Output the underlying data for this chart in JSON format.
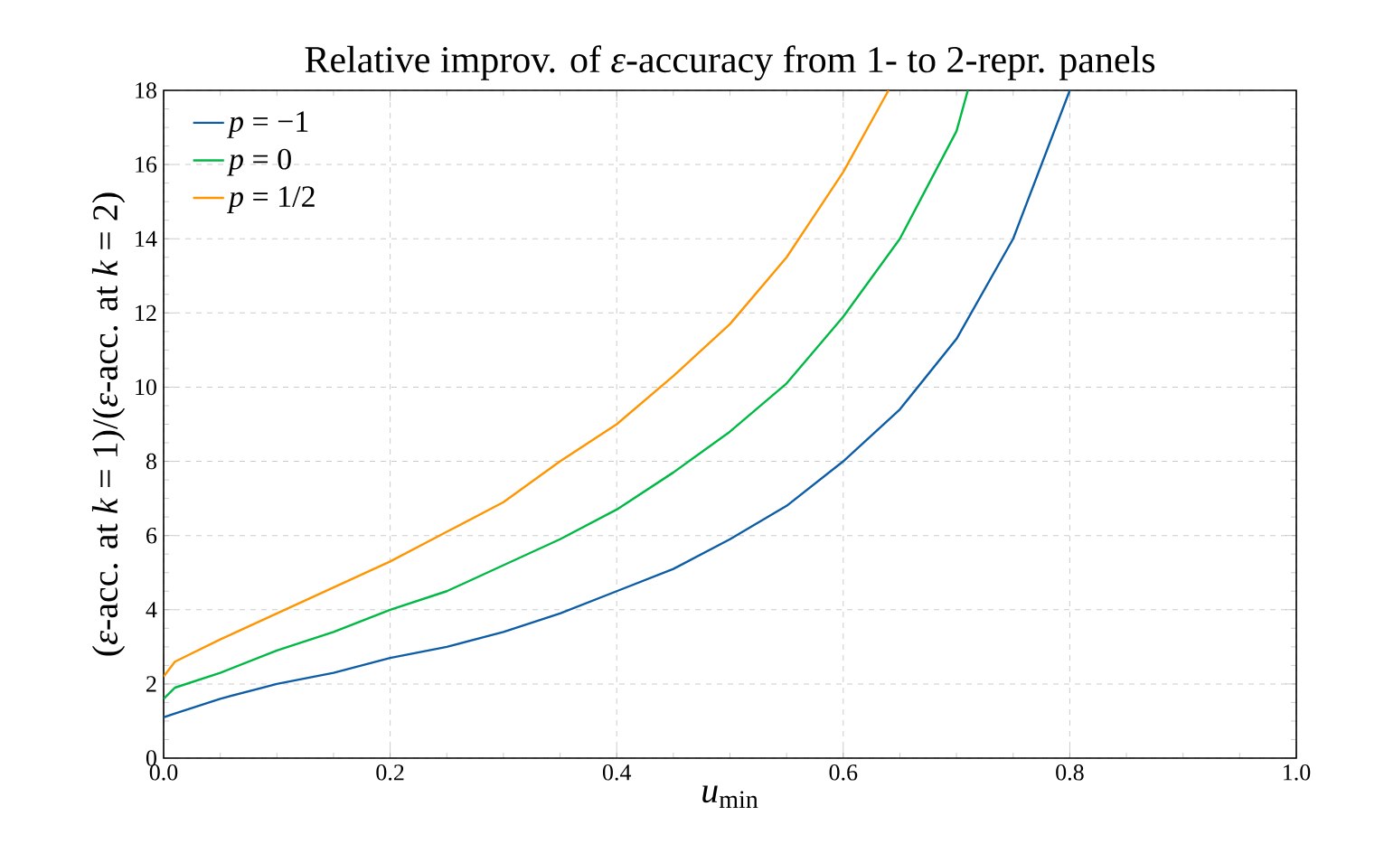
{
  "chart_data": {
    "type": "line",
    "title": "Relative improv. of *ε*-accuracy from 1- to 2-repr. panels",
    "xlabel": "*u*$_{min}$",
    "ylabel": "(*ε*-acc. at *k* = 1)/(*ε*-acc. at *k* = 2)",
    "series": [
      {
        "name": "*p* = −1",
        "color": "#0c5da5",
        "x": [
          0,
          0.01,
          0.05,
          0.1,
          0.15,
          0.2,
          0.25,
          0.3,
          0.35,
          0.4,
          0.45,
          0.5,
          0.55,
          0.6,
          0.65,
          0.7,
          0.75,
          0.8
        ],
        "values": [
          1.1,
          1.2,
          1.6,
          2.0,
          2.3,
          2.7,
          3.0,
          3.4,
          3.9,
          4.5,
          5.1,
          5.9,
          6.8,
          8.0,
          9.4,
          11.3,
          14.0,
          18
        ]
      },
      {
        "name": "*p* = 0",
        "color": "#00b945",
        "x": [
          0,
          0.01,
          0.05,
          0.1,
          0.15,
          0.2,
          0.25,
          0.3,
          0.35,
          0.4,
          0.45,
          0.5,
          0.55,
          0.6,
          0.65,
          0.7,
          0.71
        ],
        "values": [
          1.6,
          1.9,
          2.3,
          2.9,
          3.4,
          4.0,
          4.5,
          5.2,
          5.9,
          6.7,
          7.7,
          8.8,
          10.1,
          11.9,
          14.0,
          16.9,
          18
        ]
      },
      {
        "name": "*p* = 1/2",
        "color": "#ff9500",
        "x": [
          0,
          0.01,
          0.05,
          0.1,
          0.15,
          0.2,
          0.25,
          0.3,
          0.35,
          0.4,
          0.45,
          0.5,
          0.55,
          0.6,
          0.64
        ],
        "values": [
          2.2,
          2.6,
          3.2,
          3.9,
          4.6,
          5.3,
          6.1,
          6.9,
          8.0,
          9.0,
          10.3,
          11.7,
          13.5,
          15.8,
          18
        ]
      }
    ],
    "xlim": [
      0,
      1
    ],
    "ylim": [
      0,
      18
    ],
    "xticks": [
      {
        "value": 0,
        "label": "0.0"
      },
      0.2,
      0.4,
      0.6,
      0.8,
      {
        "value": 1,
        "label": "1.0"
      }
    ],
    "yticks": [
      0,
      2,
      4,
      6,
      8,
      10,
      12,
      14,
      16,
      18
    ],
    "grid": true,
    "legend": "top left",
    "marker": "none",
    "line_style": "solid"
  }
}
